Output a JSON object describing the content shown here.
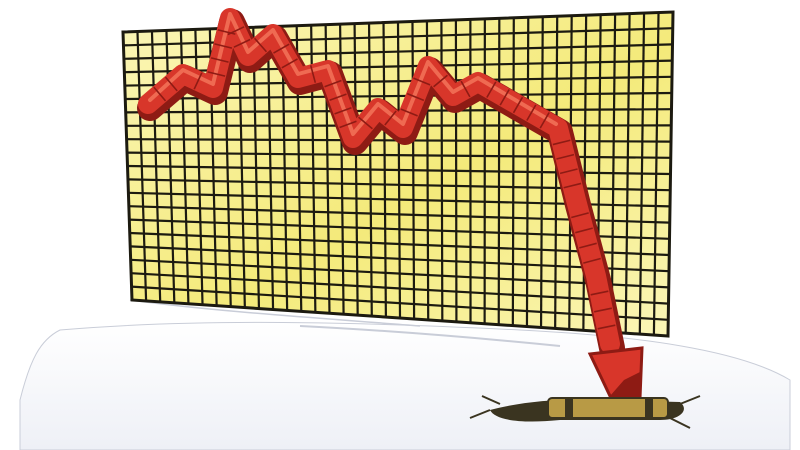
{
  "illustration": {
    "subject": "falling-graph-arrow",
    "colors": {
      "background": "#ffffff",
      "board_yellow": "#f4ea7a",
      "board_highlight": "#fbf6b8",
      "grid_lines": "#1c1a10",
      "arrow_red": "#d8362a",
      "arrow_dark": "#8e1b14",
      "arrow_light": "#ef6a52",
      "ground": "#eef0f6",
      "ground_shadow": "#c9cdd8",
      "crack": "#3a3420",
      "brass": "#b89a45"
    },
    "grid": {
      "columns": 38,
      "rows": 20
    }
  }
}
